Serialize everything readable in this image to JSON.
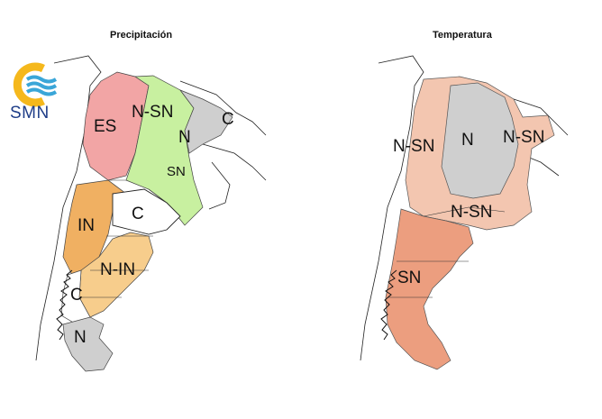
{
  "titles": {
    "left": "Precipitación",
    "right": "Temperatura"
  },
  "logo": {
    "text": "SMN",
    "colors": {
      "sun": "#f5b81c",
      "waves": "#3aa6d8"
    }
  },
  "precip_labels": {
    "es": "ES",
    "nsn": "N-SN",
    "c_ne": "C",
    "n_ne": "N",
    "sn": "SN",
    "in": "IN",
    "c_center": "C",
    "nin": "N-IN",
    "c_south": "C",
    "n_south": "N"
  },
  "temp_labels": {
    "nsn_west": "N-SN",
    "n": "N",
    "nsn_east": "N-SN",
    "nsn_center": "N-SN",
    "sn": "SN"
  },
  "colors": {
    "red": "#f2a5a5",
    "green": "#c8f0a0",
    "gray": "#cfcfcf",
    "orange": "#f0b062",
    "light_orange": "#f7cd8c",
    "salmon": "#f3c6b0",
    "dark_salmon": "#ec9e7f",
    "neutral": "#ffffff"
  }
}
